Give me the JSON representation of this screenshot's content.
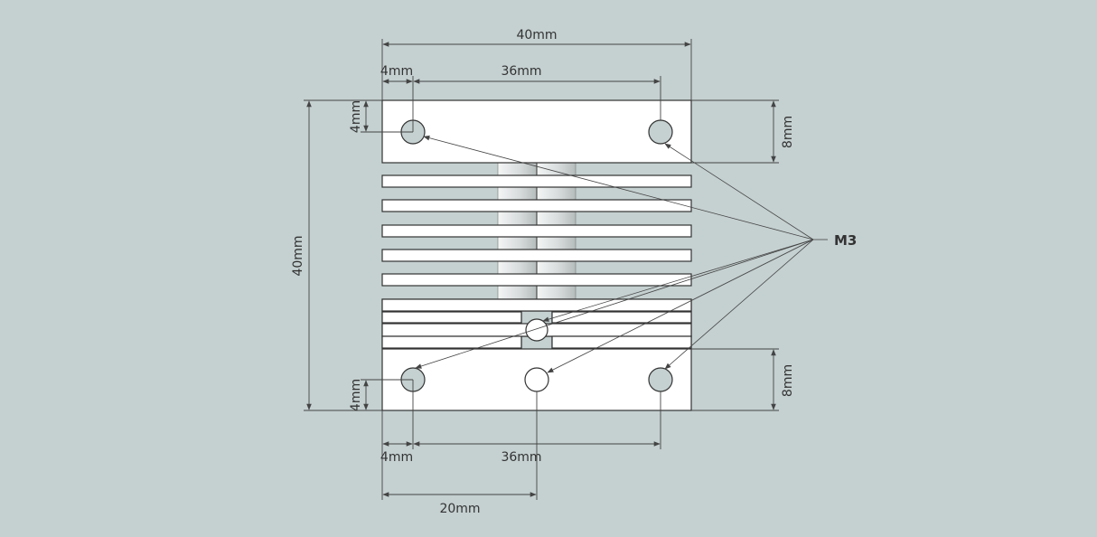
{
  "colors": {
    "background": "#c5d0d0",
    "part_fill": "#ffffff",
    "outline": "#333333",
    "hole_fill": "#c5d0d0",
    "dimension_line": "#444444"
  },
  "dimensions": {
    "top_width": "40mm",
    "top_hole_offset": "4mm",
    "top_hole_spacing": "36mm",
    "top_left_vertical": "4mm",
    "top_right_height": "8mm",
    "overall_height": "40mm",
    "bottom_left_vertical": "4mm",
    "bottom_right_height": "8mm",
    "bottom_hole_offset": "4mm",
    "bottom_hole_spacing": "36mm",
    "center_hole_offset": "20mm"
  },
  "callout": {
    "label": "M3"
  }
}
